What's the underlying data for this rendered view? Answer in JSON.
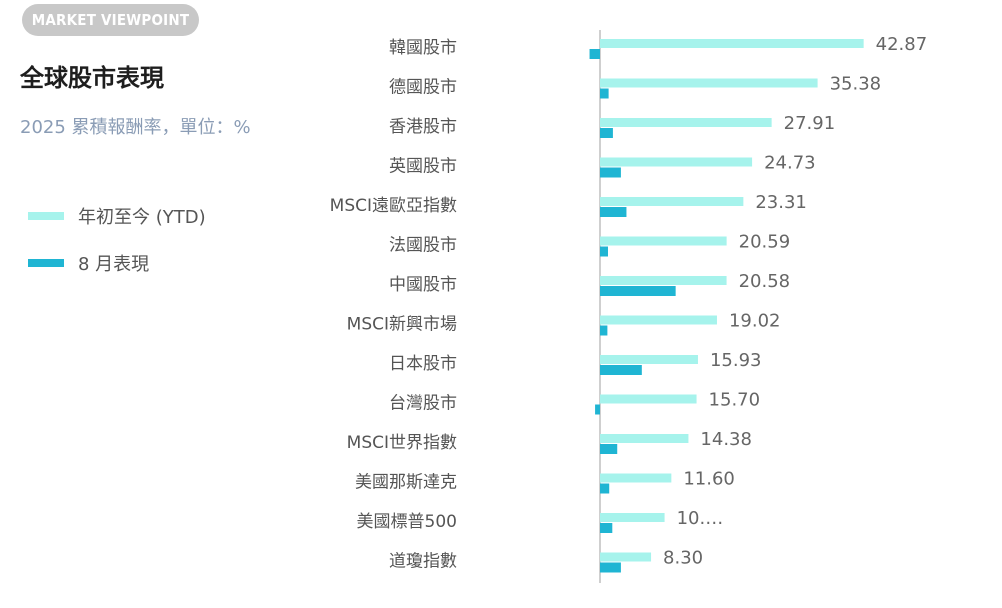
{
  "header": {
    "badge": "MARKET VIEWPOINT",
    "title": "全球股市表現",
    "subtitle": "2025 累積報酬率，單位：%"
  },
  "legend": [
    {
      "label": "年初至今 (YTD)",
      "color": "#a6f3ec"
    },
    {
      "label": "8 月表現",
      "color": "#1fb5d3"
    }
  ],
  "chart_data": {
    "type": "bar",
    "orientation": "horizontal",
    "categories": [
      "韓國股市",
      "德國股市",
      "香港股市",
      "英國股市",
      "MSCI遠歐亞指數",
      "法國股市",
      "中國股市",
      "MSCI新興市場",
      "日本股市",
      "台灣股市",
      "MSCI世界指數",
      "美國那斯達克",
      "美國標普500",
      "道瓊指數"
    ],
    "series": [
      {
        "name": "年初至今 (YTD)",
        "color": "#a6f3ec",
        "values": [
          42.87,
          35.38,
          27.91,
          24.73,
          23.31,
          20.59,
          20.58,
          19.02,
          15.93,
          15.7,
          14.38,
          11.6,
          10.5,
          8.3
        ]
      },
      {
        "name": "8 月表現",
        "color": "#1fb5d3",
        "values": [
          -1.7,
          1.4,
          2.1,
          3.4,
          4.3,
          1.3,
          12.3,
          1.2,
          6.8,
          -0.8,
          2.8,
          1.5,
          2.0,
          3.4
        ]
      }
    ],
    "data_labels": [
      "42.87",
      "35.38",
      "27.91",
      "24.73",
      "23.31",
      "20.59",
      "20.58",
      "19.02",
      "15.93",
      "15.70",
      "14.38",
      "11.60",
      "10.…",
      "8.30"
    ]
  }
}
